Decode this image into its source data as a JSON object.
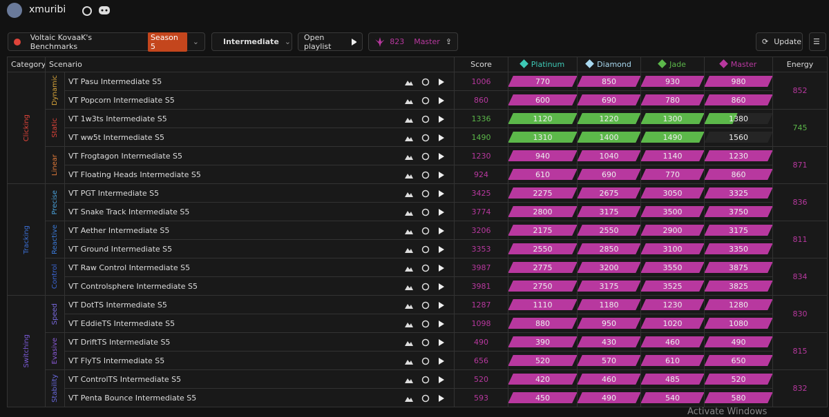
{
  "header": {
    "username": "xmuribi"
  },
  "toolbar": {
    "benchmark": "Voltaic KovaaK's Benchmarks",
    "season": "Season 5",
    "difficulty": "Intermediate",
    "playlist": "Open playlist",
    "rank_energy": 823,
    "rank": "Master",
    "update": "Update"
  },
  "table": {
    "columns": [
      "Category",
      "Scenario",
      "Score",
      "Energy"
    ],
    "ranks": [
      {
        "name": "Platinum",
        "color": "#3ec9b6"
      },
      {
        "name": "Diamond",
        "color": "#a9d9f0"
      },
      {
        "name": "Jade",
        "color": "#5cb84a"
      },
      {
        "name": "Master",
        "color": "#b8389f"
      }
    ],
    "categories": [
      {
        "name": "Clicking",
        "color": "#e0443a",
        "subcategories": [
          {
            "name": "Dynamic",
            "color": "#d9a53a",
            "energy": 852,
            "scenarios": [
              {
                "name": "VT Pasu Intermediate S5",
                "score": 1006,
                "thresholds": [
                  770,
                  850,
                  930,
                  980
                ]
              },
              {
                "name": "VT Popcorn Intermediate S5",
                "score": 860,
                "thresholds": [
                  600,
                  690,
                  780,
                  860
                ]
              }
            ]
          },
          {
            "name": "Static",
            "color": "#e0443a",
            "energy": 745,
            "scenarios": [
              {
                "name": "VT 1w3ts Intermediate S5",
                "score": 1336,
                "thresholds": [
                  1120,
                  1220,
                  1300,
                  1380
                ]
              },
              {
                "name": "VT ww5t Intermediate S5",
                "score": 1490,
                "thresholds": [
                  1310,
                  1400,
                  1490,
                  1560
                ]
              }
            ]
          },
          {
            "name": "Linear",
            "color": "#e07a3a",
            "energy": 871,
            "scenarios": [
              {
                "name": "VT Frogtagon Intermediate S5",
                "score": 1230,
                "thresholds": [
                  940,
                  1040,
                  1140,
                  1230
                ]
              },
              {
                "name": "VT Floating Heads Intermediate S5",
                "score": 924,
                "thresholds": [
                  610,
                  690,
                  770,
                  860
                ]
              }
            ]
          }
        ]
      },
      {
        "name": "Tracking",
        "color": "#3b6fd4",
        "subcategories": [
          {
            "name": "Precise",
            "color": "#4aa0d8",
            "energy": 836,
            "scenarios": [
              {
                "name": "VT PGT Intermediate S5",
                "score": 3425,
                "thresholds": [
                  2275,
                  2675,
                  3050,
                  3325
                ]
              },
              {
                "name": "VT Snake Track Intermediate S5",
                "score": 3774,
                "thresholds": [
                  2800,
                  3175,
                  3500,
                  3750
                ]
              }
            ]
          },
          {
            "name": "Reactive",
            "color": "#3b7ad8",
            "energy": 811,
            "scenarios": [
              {
                "name": "VT Aether Intermediate S5",
                "score": 3206,
                "thresholds": [
                  2175,
                  2550,
                  2900,
                  3175
                ]
              },
              {
                "name": "VT Ground Intermediate S5",
                "score": 3353,
                "thresholds": [
                  2550,
                  2850,
                  3100,
                  3350
                ]
              }
            ]
          },
          {
            "name": "Control",
            "color": "#3b66d4",
            "energy": 834,
            "scenarios": [
              {
                "name": "VT Raw Control Intermediate S5",
                "score": 3987,
                "thresholds": [
                  2775,
                  3200,
                  3550,
                  3875
                ]
              },
              {
                "name": "VT Controlsphere Intermediate S5",
                "score": 3981,
                "thresholds": [
                  2750,
                  3175,
                  3525,
                  3825
                ]
              }
            ]
          }
        ]
      },
      {
        "name": "Switching",
        "color": "#7b5ad8",
        "subcategories": [
          {
            "name": "Speed",
            "color": "#7a6ae0",
            "energy": 830,
            "scenarios": [
              {
                "name": "VT DotTS Intermediate S5",
                "score": 1287,
                "thresholds": [
                  1110,
                  1180,
                  1230,
                  1280
                ]
              },
              {
                "name": "VT EddieTS Intermediate S5",
                "score": 1098,
                "thresholds": [
                  880,
                  950,
                  1020,
                  1080
                ]
              }
            ]
          },
          {
            "name": "Evasive",
            "color": "#8a5ad8",
            "energy": 815,
            "scenarios": [
              {
                "name": "VT DriftTS Intermediate S5",
                "score": 490,
                "thresholds": [
                  390,
                  430,
                  460,
                  490
                ]
              },
              {
                "name": "VT FlyTS Intermediate S5",
                "score": 656,
                "thresholds": [
                  520,
                  570,
                  610,
                  650
                ]
              }
            ]
          },
          {
            "name": "Stability",
            "color": "#6a6ae0",
            "energy": 832,
            "scenarios": [
              {
                "name": "VT ControlTS Intermediate S5",
                "score": 520,
                "thresholds": [
                  420,
                  460,
                  485,
                  520
                ]
              },
              {
                "name": "VT Penta Bounce Intermediate S5",
                "score": 593,
                "thresholds": [
                  450,
                  490,
                  540,
                  580
                ]
              }
            ]
          }
        ]
      }
    ]
  },
  "watermark": "Activate Windows"
}
